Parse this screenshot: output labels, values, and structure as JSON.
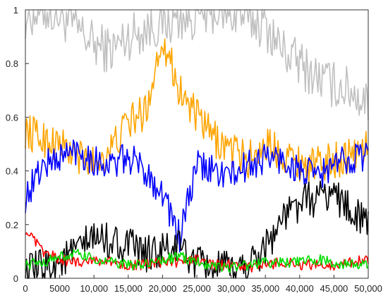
{
  "chart_data": {
    "type": "line",
    "title": "",
    "xlabel": "",
    "ylabel": "",
    "xlim": [
      0,
      50000
    ],
    "ylim": [
      0,
      1
    ],
    "grid": false,
    "legend": "none",
    "x_ticks": [
      0,
      5000,
      10000,
      15000,
      20000,
      25000,
      30000,
      35000,
      40000,
      45000,
      50000
    ],
    "x_tick_labels": [
      "0",
      "5000",
      "10,000",
      "15,000",
      "20,000",
      "25,000",
      "30,000",
      "35,000",
      "40,000",
      "45,000",
      "50,000"
    ],
    "y_ticks": [
      0,
      0.2,
      0.4,
      0.6,
      0.8,
      1
    ],
    "y_tick_labels": [
      "0",
      "0.2",
      "0.4",
      "0.6",
      "0.8",
      "1"
    ],
    "x": [
      0,
      2500,
      5000,
      7500,
      10000,
      12500,
      15000,
      17500,
      20000,
      22500,
      25000,
      27500,
      30000,
      32500,
      35000,
      37500,
      40000,
      42500,
      45000,
      47500,
      50000
    ],
    "series": [
      {
        "color": "#c0c0c0",
        "values": [
          0.98,
          1.0,
          0.98,
          0.93,
          0.87,
          0.85,
          0.9,
          0.93,
          0.95,
          0.97,
          0.98,
          1.0,
          0.99,
          0.97,
          0.94,
          0.85,
          0.8,
          0.75,
          0.72,
          0.7,
          0.65
        ]
      },
      {
        "color": "#ffa500",
        "values": [
          0.55,
          0.52,
          0.5,
          0.45,
          0.43,
          0.48,
          0.58,
          0.62,
          0.9,
          0.7,
          0.6,
          0.52,
          0.48,
          0.44,
          0.5,
          0.47,
          0.43,
          0.42,
          0.44,
          0.46,
          0.5
        ]
      },
      {
        "color": "#0000ff",
        "values": [
          0.3,
          0.42,
          0.45,
          0.48,
          0.44,
          0.42,
          0.45,
          0.4,
          0.32,
          0.15,
          0.42,
          0.4,
          0.38,
          0.42,
          0.45,
          0.44,
          0.4,
          0.38,
          0.42,
          0.45,
          0.46
        ]
      },
      {
        "color": "#000000",
        "values": [
          0.02,
          0.04,
          0.06,
          0.1,
          0.15,
          0.14,
          0.12,
          0.09,
          0.1,
          0.12,
          0.05,
          0.04,
          0.03,
          0.05,
          0.12,
          0.22,
          0.28,
          0.3,
          0.32,
          0.25,
          0.2
        ]
      },
      {
        "color": "#ff0000",
        "values": [
          0.18,
          0.1,
          0.07,
          0.06,
          0.07,
          0.06,
          0.05,
          0.05,
          0.06,
          0.06,
          0.07,
          0.05,
          0.05,
          0.04,
          0.05,
          0.06,
          0.05,
          0.05,
          0.05,
          0.06,
          0.07
        ]
      },
      {
        "color": "#00dd00",
        "values": [
          0.05,
          0.06,
          0.08,
          0.09,
          0.07,
          0.06,
          0.05,
          0.05,
          0.07,
          0.08,
          0.06,
          0.05,
          0.04,
          0.05,
          0.06,
          0.06,
          0.06,
          0.07,
          0.06,
          0.05,
          0.05
        ]
      }
    ]
  }
}
